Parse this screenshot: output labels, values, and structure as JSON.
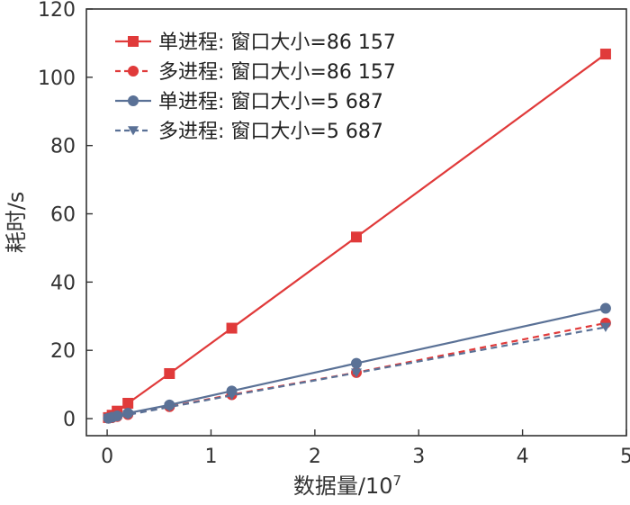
{
  "chart_data": {
    "type": "line",
    "title": "",
    "xlabel": "数据量/10",
    "xlabel_sup": "7",
    "ylabel": "耗时/s",
    "xlim": [
      -0.2,
      5
    ],
    "ylim": [
      -5,
      120
    ],
    "xticks": [
      0,
      1,
      2,
      3,
      4,
      5
    ],
    "yticks": [
      0,
      20,
      40,
      60,
      80,
      100,
      120
    ],
    "grid": false,
    "legend_position": "top-left",
    "series": [
      {
        "name": "单进程: 窗口大小=86 157",
        "color": "#e03a3a",
        "line_style": "solid",
        "marker": "square",
        "x": [
          0.012,
          0.048,
          0.096,
          0.2,
          0.6,
          1.2,
          2.4,
          4.8
        ],
        "y": [
          0.3,
          1.0,
          2.2,
          4.5,
          13.2,
          26.5,
          53.2,
          106.8
        ]
      },
      {
        "name": "多进程: 窗口大小=86 157",
        "color": "#e03a3a",
        "line_style": "dashed",
        "marker": "circle",
        "x": [
          0.012,
          0.048,
          0.096,
          0.2,
          0.6,
          1.2,
          2.4,
          4.8
        ],
        "y": [
          0.1,
          0.3,
          0.6,
          1.2,
          3.5,
          7.0,
          13.5,
          28.0
        ]
      },
      {
        "name": "单进程: 窗口大小=5 687",
        "color": "#5a7196",
        "line_style": "solid",
        "marker": "circle",
        "x": [
          0.012,
          0.048,
          0.096,
          0.2,
          0.6,
          1.2,
          2.4,
          4.8
        ],
        "y": [
          0.1,
          0.4,
          0.8,
          1.6,
          4.0,
          8.1,
          16.2,
          32.3
        ]
      },
      {
        "name": "多进程: 窗口大小=5 687",
        "color": "#5a7196",
        "line_style": "dashed",
        "marker": "triangle-down",
        "x": [
          0.012,
          0.048,
          0.096,
          0.2,
          0.6,
          1.2,
          2.4,
          4.8
        ],
        "y": [
          0.1,
          0.3,
          0.6,
          1.1,
          3.4,
          6.8,
          13.4,
          26.8
        ]
      }
    ]
  }
}
